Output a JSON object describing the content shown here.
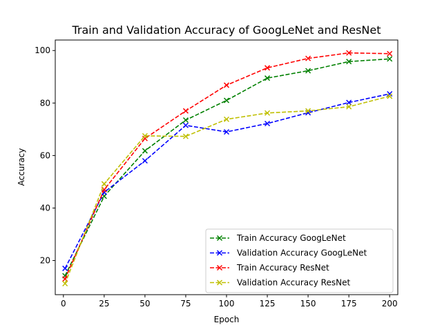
{
  "chart_data": {
    "type": "line",
    "title": "Train and Validation Accuracy of GoogLeNet and ResNet",
    "xlabel": "Epoch",
    "ylabel": "Accuracy",
    "xlim": [
      -5,
      205
    ],
    "ylim": [
      7,
      104
    ],
    "xticks": [
      0,
      25,
      50,
      75,
      100,
      125,
      150,
      175,
      200
    ],
    "yticks": [
      20,
      40,
      60,
      80,
      100
    ],
    "grid": false,
    "legend_position": "lower-right",
    "x": [
      1,
      25,
      50,
      75,
      100,
      125,
      150,
      175,
      200
    ],
    "series": [
      {
        "name": "Train Accuracy GoogLeNet",
        "color": "#008000",
        "marker": "x",
        "linestyle": "dashed",
        "values": [
          14.2,
          44.5,
          61.8,
          73.5,
          81.0,
          89.5,
          92.3,
          95.8,
          96.8
        ]
      },
      {
        "name": "Validation Accuracy GoogLeNet",
        "color": "#0000ff",
        "marker": "x",
        "linestyle": "dashed",
        "values": [
          17.0,
          46.0,
          58.0,
          71.5,
          69.0,
          72.2,
          76.3,
          80.2,
          83.5
        ]
      },
      {
        "name": "Train Accuracy ResNet",
        "color": "#ff0000",
        "marker": "x",
        "linestyle": "dashed",
        "values": [
          13.0,
          47.0,
          66.5,
          77.0,
          86.8,
          93.4,
          97.0,
          99.1,
          98.8
        ]
      },
      {
        "name": "Validation Accuracy ResNet",
        "color": "#bfbf00",
        "marker": "x",
        "linestyle": "dashed",
        "values": [
          11.2,
          49.2,
          67.5,
          67.3,
          73.8,
          76.2,
          77.0,
          78.6,
          82.6
        ]
      }
    ]
  }
}
